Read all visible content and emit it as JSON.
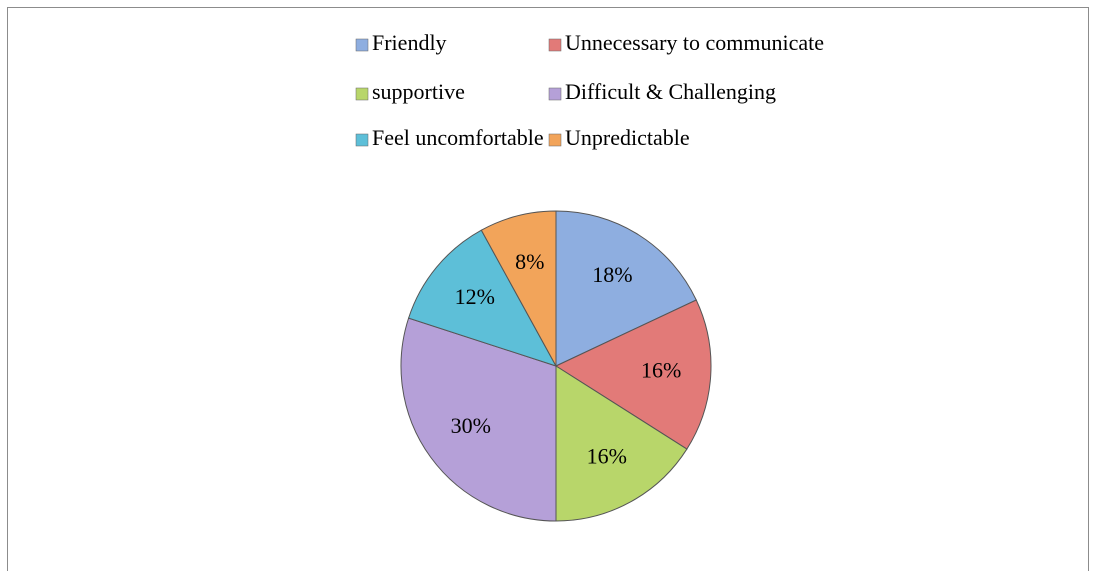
{
  "chart_data": {
    "type": "pie",
    "categories": [
      "Friendly",
      "Unnecessary to communicate",
      "supportive",
      "Difficult & Challenging",
      "Feel uncomfortable",
      "Unpredictable"
    ],
    "values": [
      18,
      16,
      16,
      30,
      12,
      8
    ],
    "value_labels": [
      "18%",
      "16%",
      "16%",
      "30%",
      "12%",
      "8%"
    ],
    "colors": [
      "#8eaee0",
      "#e27a78",
      "#b8d66a",
      "#b5a0d8",
      "#5dbfd8",
      "#f2a45a"
    ],
    "legend": "top"
  }
}
